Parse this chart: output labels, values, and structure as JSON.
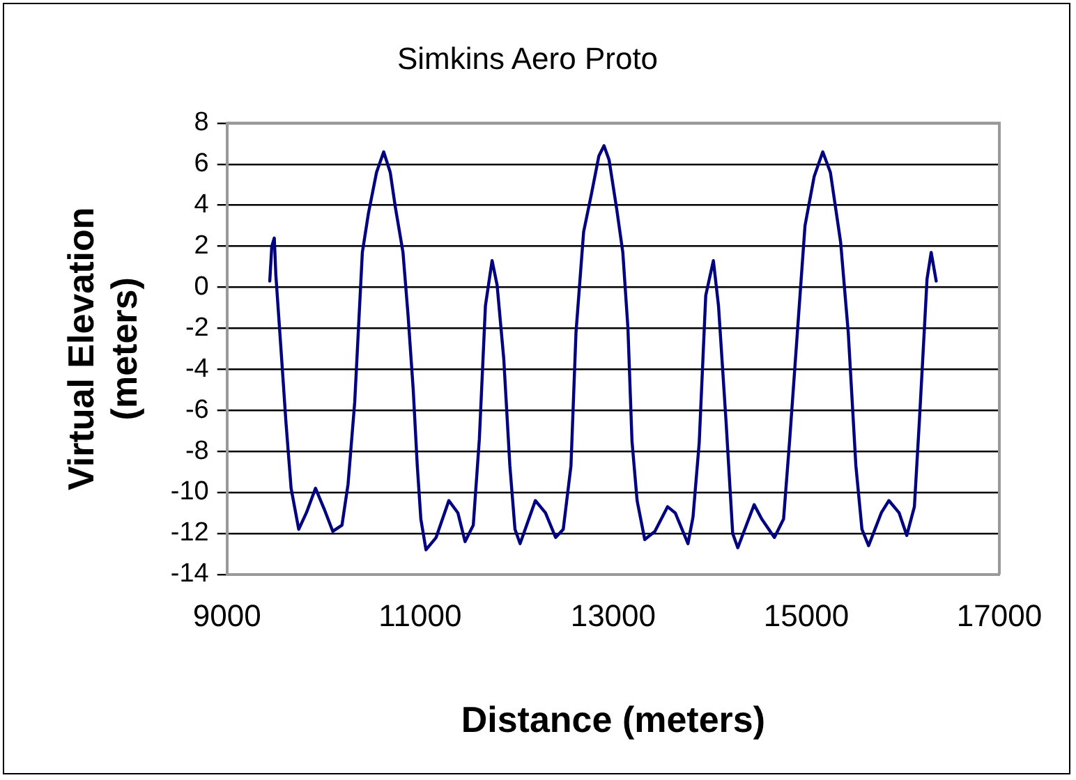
{
  "chart_data": {
    "type": "line",
    "title": "Simkins Aero Proto",
    "xlabel": "Distance (meters)",
    "ylabel": "Virtual Elevation (meters)",
    "xlim": [
      9000,
      17000
    ],
    "xticks": [
      9000,
      11000,
      13000,
      15000,
      17000
    ],
    "ylim": [
      -14,
      8
    ],
    "yticks": [
      -14,
      -12,
      -10,
      -8,
      -6,
      -4,
      -2,
      0,
      2,
      4,
      6,
      8
    ],
    "grid": "y",
    "legend": false,
    "marker": "none",
    "line_style": "solid",
    "series": [
      {
        "color": "#000080",
        "x": [
          9443,
          9464,
          9490,
          9506,
          9559,
          9611,
          9664,
          9743,
          9822,
          9917,
          10006,
          10096,
          10191,
          10254,
          10323,
          10402,
          10465,
          10549,
          10623,
          10691,
          10744,
          10823,
          10876,
          10929,
          10971,
          11008,
          11061,
          11166,
          11298,
          11392,
          11466,
          11551,
          11614,
          11677,
          11746,
          11798,
          11867,
          11930,
          11983,
          12036,
          12194,
          12299,
          12404,
          12483,
          12563,
          12615,
          12694,
          12773,
          12852,
          12905,
          12958,
          13037,
          13100,
          13153,
          13195,
          13248,
          13327,
          13432,
          13564,
          13643,
          13775,
          13827,
          13891,
          13959,
          14038,
          14091,
          14170,
          14238,
          14291,
          14460,
          14539,
          14670,
          14765,
          14829,
          14908,
          14987,
          15082,
          15171,
          15250,
          15356,
          15435,
          15514,
          15577,
          15646,
          15777,
          15856,
          15962,
          16041,
          16120,
          16172,
          16225,
          16251,
          16294,
          16346
        ],
        "values": [
          0.3,
          2.0,
          2.4,
          0.6,
          -3.0,
          -6.6,
          -9.8,
          -11.8,
          -11.0,
          -9.8,
          -10.8,
          -11.9,
          -11.6,
          -9.6,
          -5.6,
          1.7,
          3.6,
          5.6,
          6.6,
          5.6,
          3.9,
          1.7,
          -1.4,
          -5.0,
          -8.7,
          -11.3,
          -12.8,
          -12.2,
          -10.4,
          -11.0,
          -12.4,
          -11.6,
          -7.4,
          -0.9,
          1.3,
          0.1,
          -3.5,
          -8.7,
          -11.8,
          -12.5,
          -10.4,
          -11.0,
          -12.2,
          -11.8,
          -8.7,
          -2.2,
          2.7,
          4.5,
          6.4,
          6.9,
          6.2,
          3.8,
          1.7,
          -2.0,
          -7.5,
          -10.4,
          -12.3,
          -11.9,
          -10.7,
          -11.0,
          -12.5,
          -11.2,
          -7.6,
          -0.4,
          1.3,
          -0.9,
          -6.6,
          -12.0,
          -12.7,
          -10.6,
          -11.3,
          -12.2,
          -11.3,
          -7.4,
          -2.2,
          3.0,
          5.4,
          6.6,
          5.6,
          2.2,
          -2.2,
          -8.7,
          -11.8,
          -12.6,
          -11.0,
          -10.4,
          -11.0,
          -12.1,
          -10.7,
          -6.5,
          -1.9,
          0.4,
          1.7,
          0.3
        ]
      }
    ]
  }
}
